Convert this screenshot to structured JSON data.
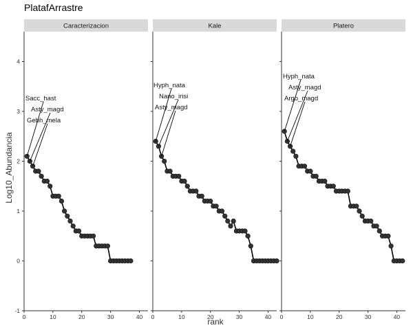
{
  "chart_data": {
    "type": "line",
    "title": "PlatafArrastre",
    "xlabel": "rank",
    "ylabel": "Log10_Abundancia",
    "xlim": [
      0,
      43
    ],
    "ylim": [
      -1,
      4.6
    ],
    "x_ticks": [
      0,
      10,
      20,
      30,
      40
    ],
    "y_ticks": [
      -1,
      0,
      1,
      2,
      3,
      4
    ],
    "grid": false,
    "legend": "none",
    "colors": {
      "line": "#000000",
      "point": "#333333",
      "strip_bg": "#d9d9d9",
      "label_line": "#000000"
    },
    "facets": [
      {
        "name": "Caracterizacion",
        "x": [
          1,
          2,
          3,
          4,
          5,
          6,
          7,
          8,
          9,
          10,
          11,
          12,
          13,
          14,
          15,
          16,
          17,
          18,
          19,
          20,
          21,
          22,
          23,
          24,
          25,
          26,
          27,
          28,
          29,
          30,
          31,
          32,
          33,
          34,
          35,
          36,
          37
        ],
        "y": [
          2.1,
          2.0,
          1.9,
          1.8,
          1.8,
          1.7,
          1.6,
          1.6,
          1.5,
          1.3,
          1.3,
          1.3,
          1.2,
          1.0,
          0.9,
          0.8,
          0.7,
          0.6,
          0.6,
          0.5,
          0.5,
          0.5,
          0.5,
          0.5,
          0.3,
          0.3,
          0.3,
          0.3,
          0.3,
          0.0,
          0.0,
          0.0,
          0.0,
          0.0,
          0.0,
          0.0,
          0.0
        ],
        "labels": [
          {
            "text": "Sacc_hast",
            "rank": 1
          },
          {
            "text": "Asty_magd",
            "rank": 2
          },
          {
            "text": "Gebh_mela",
            "rank": 3
          }
        ]
      },
      {
        "name": "Kale",
        "x": [
          1,
          2,
          3,
          4,
          5,
          6,
          7,
          8,
          9,
          10,
          11,
          12,
          13,
          14,
          15,
          16,
          17,
          18,
          19,
          20,
          21,
          22,
          23,
          24,
          25,
          26,
          27,
          28,
          29,
          30,
          31,
          32,
          33,
          34,
          35,
          36,
          37,
          38,
          39,
          40,
          41,
          42,
          43
        ],
        "y": [
          2.4,
          2.3,
          2.1,
          2.0,
          1.8,
          1.8,
          1.7,
          1.7,
          1.7,
          1.6,
          1.6,
          1.5,
          1.4,
          1.4,
          1.4,
          1.3,
          1.3,
          1.2,
          1.2,
          1.2,
          1.1,
          1.1,
          1.0,
          1.0,
          0.9,
          0.8,
          0.7,
          0.8,
          0.6,
          0.6,
          0.6,
          0.6,
          0.5,
          0.3,
          0.0,
          0.0,
          0.0,
          0.0,
          0.0,
          0.0,
          0.0,
          0.0,
          0.0
        ],
        "labels": [
          {
            "text": "Hyph_nata",
            "rank": 1
          },
          {
            "text": "Nano_insi",
            "rank": 2
          },
          {
            "text": "Asty_magd",
            "rank": 3
          }
        ]
      },
      {
        "name": "Platero",
        "x": [
          1,
          2,
          3,
          4,
          5,
          6,
          7,
          8,
          9,
          10,
          11,
          12,
          13,
          14,
          15,
          16,
          17,
          18,
          19,
          20,
          21,
          22,
          23,
          24,
          25,
          26,
          27,
          28,
          29,
          30,
          31,
          32,
          33,
          34,
          35,
          36,
          37,
          38,
          39,
          40,
          41,
          42
        ],
        "y": [
          2.6,
          2.4,
          2.3,
          2.2,
          2.1,
          1.9,
          1.9,
          1.9,
          1.8,
          1.8,
          1.7,
          1.7,
          1.6,
          1.6,
          1.6,
          1.5,
          1.5,
          1.5,
          1.4,
          1.4,
          1.4,
          1.4,
          1.4,
          1.1,
          1.1,
          1.1,
          1.0,
          0.9,
          0.8,
          0.8,
          0.8,
          0.7,
          0.7,
          0.6,
          0.5,
          0.5,
          0.5,
          0.3,
          0.0,
          0.0,
          0.0,
          0.0
        ],
        "labels": [
          {
            "text": "Hyph_nata",
            "rank": 1
          },
          {
            "text": "Asty_magd",
            "rank": 2
          },
          {
            "text": "Argo_magd",
            "rank": 3
          }
        ]
      }
    ]
  }
}
